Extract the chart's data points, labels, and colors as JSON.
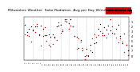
{
  "title": "Milwaukee Weather  Solar Radiation  Avg per Day W/m2/minute",
  "title_fontsize": 3.2,
  "bg_color": "#ffffff",
  "plot_bg": "#ffffff",
  "grid_color": "#bbbbbb",
  "dot_color_black": "#000000",
  "dot_color_red": "#cc0000",
  "legend_box_color": "#dd0000",
  "ylim": [
    0,
    9
  ],
  "ytick_labels": [
    "8",
    "7",
    "6",
    "5",
    "4",
    "3",
    "2",
    "1"
  ],
  "num_points": 53,
  "vline_positions": [
    4,
    9,
    13,
    18,
    22,
    26,
    31,
    35,
    39,
    44,
    48
  ],
  "seed": 7
}
